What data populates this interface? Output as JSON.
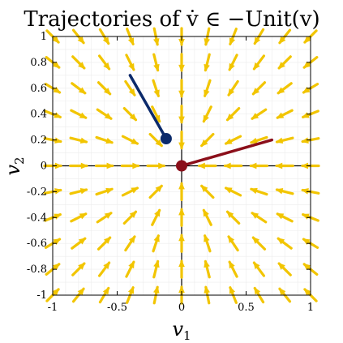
{
  "chart_data": {
    "type": "quiver",
    "title": "Trajectories of v̇ ∈ −Unit(v)",
    "xlabel_var": "v",
    "xlabel_sub": "1",
    "ylabel_var": "v",
    "ylabel_sub": "2",
    "xlim": [
      -1,
      1
    ],
    "ylim": [
      -1,
      1
    ],
    "xticks": [
      -1,
      -0.5,
      0,
      0.5,
      1
    ],
    "xtick_labels": [
      "-1",
      "-0.5",
      "0",
      "0.5",
      "1"
    ],
    "yticks": [
      -1,
      -0.8,
      -0.6,
      -0.4,
      -0.2,
      0,
      0.2,
      0.4,
      0.6,
      0.8,
      1
    ],
    "ytick_labels": [
      "-1",
      "-0.8",
      "-0.6",
      "-0.4",
      "-0.2",
      "0",
      "0.2",
      "0.4",
      "0.6",
      "0.8",
      "1"
    ],
    "grid": true,
    "field": {
      "x_values": [
        -1,
        -0.8,
        -0.6,
        -0.4,
        -0.2,
        0,
        0.2,
        0.4,
        0.6,
        0.8,
        1
      ],
      "y_values": [
        -1,
        -0.8,
        -0.6,
        -0.4,
        -0.2,
        0,
        0.2,
        0.4,
        0.6,
        0.8,
        1
      ],
      "direction": "toward origin (unit length)",
      "color": "#f2c500"
    },
    "trajectories": [
      {
        "start": [
          -0.4,
          0.7
        ],
        "end": [
          -0.12,
          0.21
        ],
        "color": "#0b2a6b",
        "end_marker": true
      },
      {
        "start": [
          0.7,
          0.2
        ],
        "end": [
          0,
          0
        ],
        "color": "#8b0f1a",
        "end_marker": true
      }
    ]
  }
}
